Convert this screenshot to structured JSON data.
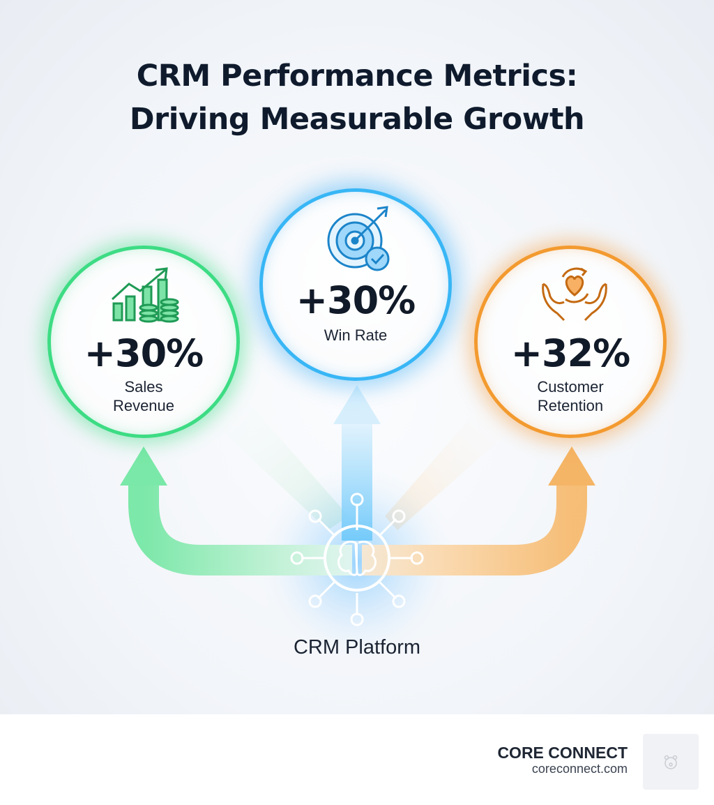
{
  "title": {
    "line1": "CRM Performance Metrics:",
    "line2": "Driving Measurable Growth"
  },
  "metrics": [
    {
      "value": "+30%",
      "label_line1": "Sales",
      "label_line2": "Revenue",
      "icon": "growth-chart-coins-icon",
      "color": "#3ddc84"
    },
    {
      "value": "+30%",
      "label_line1": "Win Rate",
      "icon": "target-check-icon",
      "color": "#38b6f5"
    },
    {
      "value": "+32%",
      "label_line1": "Customer",
      "label_line2": "Retention",
      "icon": "heart-hands-icon",
      "color": "#f39a2f"
    }
  ],
  "platform": {
    "label": "CRM Platform",
    "icon": "brain-network-icon",
    "color": "#38b6f5"
  },
  "footer": {
    "brand_name": "CORE CONNECT",
    "brand_url": "coreconnect.com",
    "logo_icon": "bear-logo-icon"
  },
  "colors": {
    "title": "#0f1b2d",
    "green": "#3ddc84",
    "blue": "#38b6f5",
    "orange": "#f39a2f"
  }
}
